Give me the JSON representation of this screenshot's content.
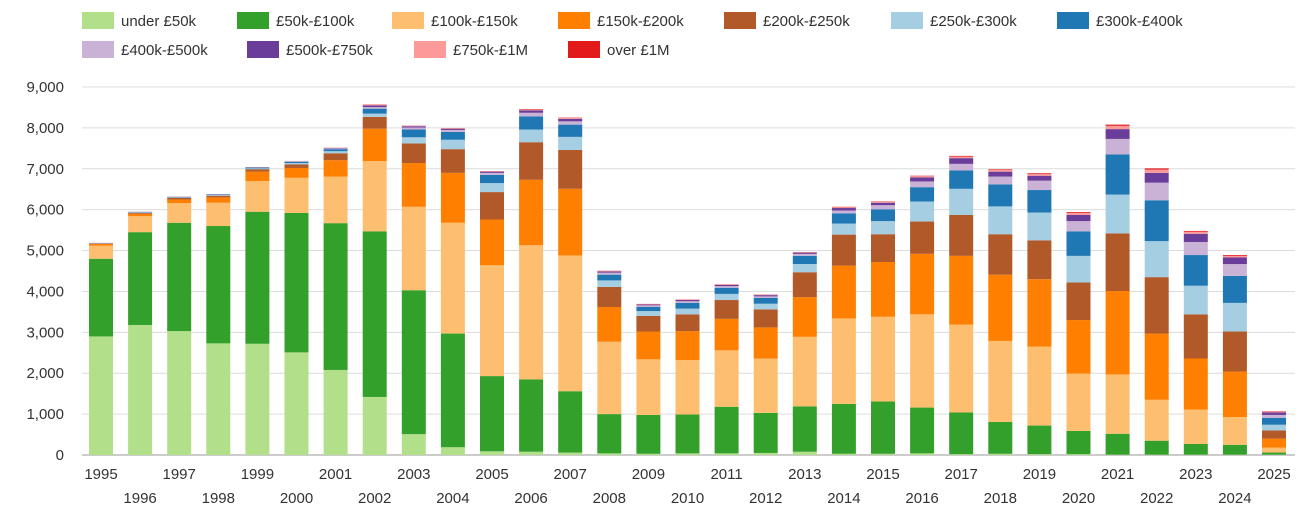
{
  "chart_data": {
    "type": "bar",
    "stacked": true,
    "title": "",
    "xlabel": "",
    "ylabel": "",
    "ylim": [
      0,
      9000
    ],
    "yticks": [
      "0",
      "1,000",
      "2,000",
      "3,000",
      "4,000",
      "5,000",
      "6,000",
      "7,000",
      "8,000",
      "9,000"
    ],
    "ytick_values": [
      0,
      1000,
      2000,
      3000,
      4000,
      5000,
      6000,
      7000,
      8000,
      9000
    ],
    "grid": true,
    "legend_position": "top-left",
    "categories": [
      "1995",
      "1996",
      "1997",
      "1998",
      "1999",
      "2000",
      "2001",
      "2002",
      "2003",
      "2004",
      "2005",
      "2006",
      "2007",
      "2008",
      "2009",
      "2010",
      "2011",
      "2012",
      "2013",
      "2014",
      "2015",
      "2016",
      "2017",
      "2018",
      "2019",
      "2020",
      "2021",
      "2022",
      "2023",
      "2024",
      "2025"
    ],
    "series": [
      {
        "name": "under £50k",
        "color": "#b2df8a",
        "values": [
          2900,
          3180,
          3030,
          2730,
          2720,
          2510,
          2080,
          1420,
          510,
          190,
          90,
          80,
          60,
          40,
          30,
          40,
          40,
          50,
          80,
          30,
          30,
          40,
          20,
          30,
          20,
          20,
          10,
          10,
          10,
          10,
          10
        ]
      },
      {
        "name": "£50k-£100k",
        "color": "#33a02c",
        "values": [
          1900,
          2270,
          2650,
          2870,
          3230,
          3410,
          3590,
          4050,
          3520,
          2780,
          1840,
          1770,
          1500,
          960,
          950,
          950,
          1140,
          980,
          1110,
          1220,
          1280,
          1120,
          1020,
          780,
          700,
          570,
          510,
          340,
          260,
          240,
          50
        ]
      },
      {
        "name": "£100k-£150k",
        "color": "#fdbf6f",
        "values": [
          320,
          390,
          480,
          570,
          750,
          860,
          1140,
          1720,
          2040,
          2710,
          2710,
          3280,
          3320,
          1770,
          1360,
          1330,
          1380,
          1330,
          1700,
          2090,
          2070,
          2280,
          2150,
          1980,
          1930,
          1400,
          1450,
          1000,
          840,
          680,
          120
        ]
      },
      {
        "name": "£150k-£200k",
        "color": "#ff7f00",
        "values": [
          40,
          60,
          90,
          130,
          230,
          240,
          400,
          790,
          1070,
          1220,
          1120,
          1600,
          1630,
          850,
          680,
          710,
          770,
          760,
          970,
          1290,
          1340,
          1480,
          1680,
          1620,
          1650,
          1310,
          2040,
          1620,
          1250,
          1110,
          220
        ]
      },
      {
        "name": "£200k-£250k",
        "color": "#b15928",
        "values": [
          10,
          20,
          40,
          40,
          60,
          90,
          170,
          290,
          480,
          580,
          670,
          920,
          950,
          490,
          380,
          410,
          460,
          440,
          610,
          760,
          680,
          790,
          1000,
          990,
          950,
          920,
          1410,
          1380,
          1080,
          980,
          200
        ]
      },
      {
        "name": "£250k-£300k",
        "color": "#a6cee3",
        "values": [
          5,
          10,
          10,
          15,
          20,
          30,
          50,
          80,
          150,
          230,
          220,
          310,
          320,
          160,
          120,
          140,
          150,
          140,
          200,
          270,
          320,
          490,
          640,
          680,
          680,
          650,
          950,
          880,
          700,
          700,
          140
        ]
      },
      {
        "name": "£300k-£400k",
        "color": "#1f78b4",
        "values": [
          5,
          10,
          10,
          15,
          20,
          30,
          50,
          120,
          190,
          190,
          200,
          320,
          300,
          140,
          100,
          140,
          150,
          140,
          200,
          250,
          290,
          350,
          450,
          540,
          550,
          600,
          980,
          1000,
          750,
          660,
          170
        ]
      },
      {
        "name": "£400k-£500k",
        "color": "#cab2d6",
        "values": [
          3,
          5,
          5,
          5,
          5,
          10,
          20,
          40,
          50,
          50,
          50,
          90,
          80,
          50,
          40,
          40,
          40,
          40,
          50,
          70,
          100,
          140,
          160,
          190,
          230,
          250,
          380,
          430,
          320,
          290,
          70
        ]
      },
      {
        "name": "£500k-£750k",
        "color": "#6a3d9a",
        "values": [
          2,
          3,
          3,
          3,
          5,
          5,
          10,
          40,
          30,
          30,
          30,
          60,
          60,
          30,
          20,
          30,
          30,
          30,
          30,
          60,
          60,
          100,
          140,
          120,
          120,
          150,
          240,
          240,
          200,
          160,
          60
        ]
      },
      {
        "name": "£750k-£1M",
        "color": "#fb9a99",
        "values": [
          2,
          2,
          2,
          2,
          3,
          4,
          5,
          20,
          10,
          10,
          10,
          20,
          20,
          10,
          10,
          10,
          10,
          10,
          10,
          20,
          20,
          30,
          40,
          40,
          40,
          50,
          80,
          80,
          50,
          40,
          20
        ]
      },
      {
        "name": "over £1M",
        "color": "#e31a1c",
        "values": [
          1,
          1,
          1,
          1,
          1,
          2,
          2,
          5,
          5,
          5,
          5,
          10,
          10,
          5,
          5,
          5,
          5,
          5,
          5,
          10,
          10,
          10,
          15,
          15,
          20,
          20,
          30,
          30,
          20,
          20,
          10
        ]
      }
    ]
  }
}
